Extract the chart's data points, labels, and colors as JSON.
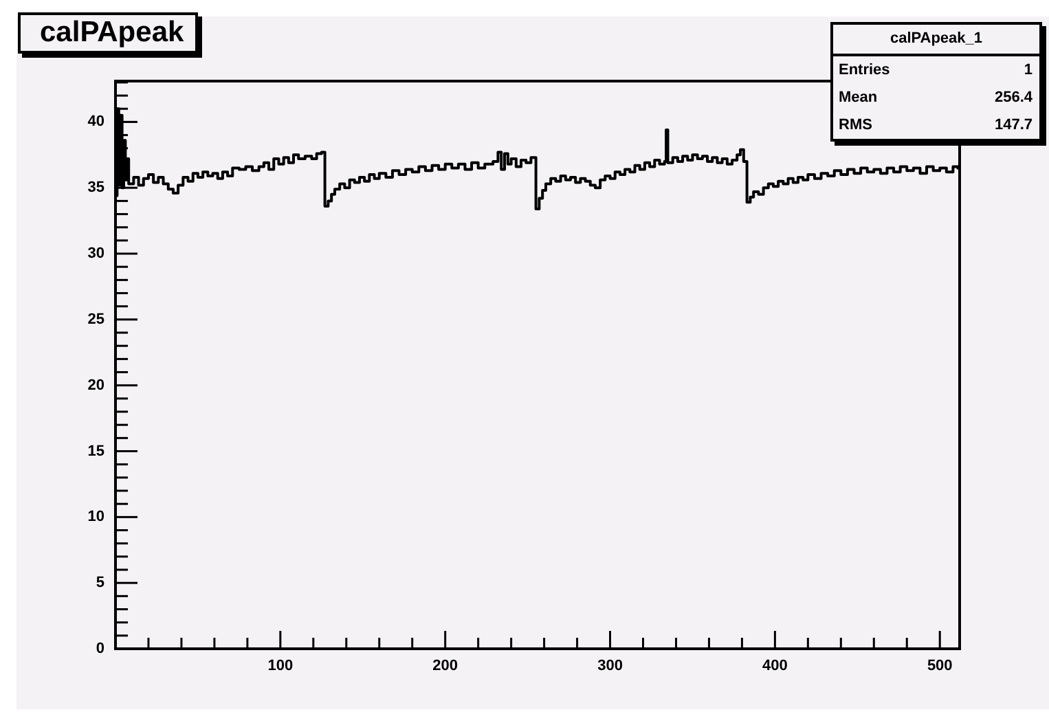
{
  "chart_data": {
    "type": "step",
    "title": "calPApeak",
    "annotations": [
      "calPApeak_1",
      "Entries",
      "1",
      "Mean",
      "256.4",
      "RMS",
      "147.7"
    ],
    "color": "#000000",
    "x": [
      0,
      1,
      2,
      3,
      4,
      5,
      6,
      7,
      8,
      11,
      14,
      17,
      20,
      23,
      26,
      29,
      32,
      35,
      38,
      41,
      44,
      47,
      50,
      53,
      56,
      59,
      62,
      65,
      68,
      71,
      75,
      79,
      83,
      87,
      90,
      93,
      96,
      99,
      102,
      105,
      108,
      111,
      115,
      119,
      122,
      125,
      127,
      129,
      131,
      133,
      136,
      139,
      142,
      145,
      148,
      151,
      154,
      157,
      160,
      164,
      168,
      172,
      176,
      180,
      184,
      188,
      192,
      196,
      200,
      204,
      208,
      212,
      216,
      220,
      224,
      229,
      232,
      234,
      236,
      238,
      240,
      243,
      246,
      249,
      252,
      255,
      257,
      259,
      261,
      264,
      267,
      270,
      273,
      276,
      279,
      282,
      285,
      288,
      291,
      294,
      297,
      300,
      303,
      306,
      309,
      312,
      315,
      318,
      321,
      324,
      327,
      330,
      333,
      334,
      335,
      338,
      341,
      344,
      347,
      350,
      353,
      356,
      359,
      362,
      365,
      368,
      371,
      374,
      377,
      379,
      381,
      383,
      385,
      387,
      390,
      393,
      396,
      399,
      402,
      405,
      408,
      411,
      414,
      417,
      420,
      424,
      428,
      432,
      436,
      440,
      444,
      448,
      452,
      456,
      460,
      464,
      468,
      472,
      476,
      480,
      484,
      488,
      492,
      496,
      500,
      504,
      508,
      511
    ],
    "values": [
      34.4,
      41.0,
      35.2,
      40.5,
      35.0,
      38.6,
      35.6,
      37.2,
      35.3,
      35.8,
      35.2,
      35.7,
      36.0,
      35.4,
      35.8,
      35.3,
      34.9,
      34.6,
      35.2,
      35.8,
      35.5,
      36.1,
      35.8,
      36.2,
      35.9,
      36.1,
      35.7,
      36.2,
      35.9,
      36.5,
      36.4,
      36.6,
      36.3,
      36.6,
      36.9,
      36.4,
      37.2,
      36.8,
      37.3,
      36.9,
      37.5,
      37.2,
      37.4,
      37.2,
      37.6,
      37.7,
      33.6,
      34.0,
      34.5,
      34.9,
      35.3,
      35.0,
      35.6,
      35.4,
      35.8,
      35.5,
      36.0,
      35.7,
      36.1,
      35.8,
      36.3,
      36.0,
      36.4,
      36.2,
      36.6,
      36.3,
      36.7,
      36.4,
      36.8,
      36.5,
      36.8,
      36.4,
      36.9,
      36.5,
      36.8,
      37.0,
      37.7,
      36.4,
      37.6,
      36.8,
      37.2,
      36.6,
      37.1,
      36.9,
      37.3,
      33.4,
      34.2,
      34.8,
      35.3,
      35.7,
      35.5,
      35.9,
      35.6,
      35.8,
      35.4,
      35.7,
      35.5,
      35.2,
      35.0,
      35.6,
      35.9,
      35.7,
      36.2,
      36.0,
      36.4,
      36.2,
      36.7,
      36.4,
      36.9,
      36.6,
      37.1,
      36.8,
      37.0,
      39.4,
      36.9,
      37.3,
      37.0,
      37.4,
      37.1,
      37.5,
      37.2,
      37.4,
      37.0,
      37.3,
      36.9,
      37.2,
      36.8,
      37.1,
      37.5,
      37.9,
      37.0,
      33.9,
      34.3,
      34.7,
      34.5,
      35.0,
      35.3,
      35.1,
      35.5,
      35.3,
      35.7,
      35.4,
      35.8,
      35.6,
      36.0,
      35.7,
      36.1,
      35.9,
      36.3,
      36.0,
      36.4,
      36.1,
      36.5,
      36.2,
      36.4,
      36.1,
      36.5,
      36.2,
      36.6,
      36.3,
      36.5,
      36.1,
      36.6,
      36.3,
      36.5,
      36.2,
      36.6,
      36.4
    ],
    "xlim": [
      0,
      512
    ],
    "ylim": [
      0,
      43.1
    ],
    "xticks": [
      {
        "value": 0,
        "label": null
      },
      {
        "value": 20,
        "label": null
      },
      {
        "value": 40,
        "label": null
      },
      {
        "value": 60,
        "label": null
      },
      {
        "value": 80,
        "label": null
      },
      100,
      {
        "value": 120,
        "label": null
      },
      {
        "value": 140,
        "label": null
      },
      {
        "value": 160,
        "label": null
      },
      {
        "value": 180,
        "label": null
      },
      200,
      {
        "value": 220,
        "label": null
      },
      {
        "value": 240,
        "label": null
      },
      {
        "value": 260,
        "label": null
      },
      {
        "value": 280,
        "label": null
      },
      300,
      {
        "value": 320,
        "label": null
      },
      {
        "value": 340,
        "label": null
      },
      {
        "value": 360,
        "label": null
      },
      {
        "value": 380,
        "label": null
      },
      400,
      {
        "value": 420,
        "label": null
      },
      {
        "value": 440,
        "label": null
      },
      {
        "value": 460,
        "label": null
      },
      {
        "value": 480,
        "label": null
      },
      500
    ],
    "yticks": [
      0,
      {
        "value": 1,
        "label": null
      },
      {
        "value": 2,
        "label": null
      },
      {
        "value": 3,
        "label": null
      },
      {
        "value": 4,
        "label": null
      },
      5,
      {
        "value": 6,
        "label": null
      },
      {
        "value": 7,
        "label": null
      },
      {
        "value": 8,
        "label": null
      },
      {
        "value": 9,
        "label": null
      },
      10,
      {
        "value": 11,
        "label": null
      },
      {
        "value": 12,
        "label": null
      },
      {
        "value": 13,
        "label": null
      },
      {
        "value": 14,
        "label": null
      },
      15,
      {
        "value": 16,
        "label": null
      },
      {
        "value": 17,
        "label": null
      },
      {
        "value": 18,
        "label": null
      },
      {
        "value": 19,
        "label": null
      },
      20,
      {
        "value": 21,
        "label": null
      },
      {
        "value": 22,
        "label": null
      },
      {
        "value": 23,
        "label": null
      },
      {
        "value": 24,
        "label": null
      },
      25,
      {
        "value": 26,
        "label": null
      },
      {
        "value": 27,
        "label": null
      },
      {
        "value": 28,
        "label": null
      },
      {
        "value": 29,
        "label": null
      },
      30,
      {
        "value": 31,
        "label": null
      },
      {
        "value": 32,
        "label": null
      },
      {
        "value": 33,
        "label": null
      },
      {
        "value": 34,
        "label": null
      },
      35,
      {
        "value": 36,
        "label": null
      },
      {
        "value": 37,
        "label": null
      },
      {
        "value": 38,
        "label": null
      },
      {
        "value": 39,
        "label": null
      },
      40,
      {
        "value": 41,
        "label": null
      },
      {
        "value": 42,
        "label": null
      },
      {
        "value": 43,
        "label": null
      }
    ]
  }
}
